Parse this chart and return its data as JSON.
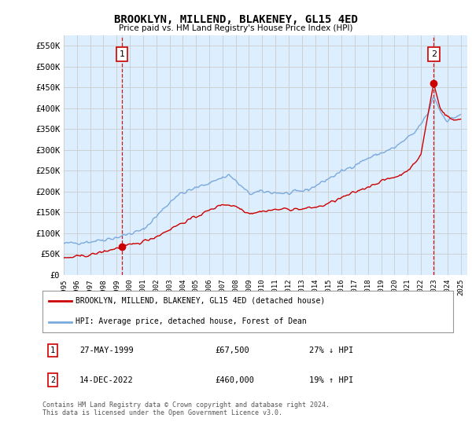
{
  "title": "BROOKLYN, MILLEND, BLAKENEY, GL15 4ED",
  "subtitle": "Price paid vs. HM Land Registry's House Price Index (HPI)",
  "ylabel_ticks": [
    "£0",
    "£50K",
    "£100K",
    "£150K",
    "£200K",
    "£250K",
    "£300K",
    "£350K",
    "£400K",
    "£450K",
    "£500K",
    "£550K"
  ],
  "ytick_values": [
    0,
    50000,
    100000,
    150000,
    200000,
    250000,
    300000,
    350000,
    400000,
    450000,
    500000,
    550000
  ],
  "ylim": [
    0,
    575000
  ],
  "xlim_start": 1995.0,
  "xlim_end": 2025.5,
  "point1_x": 1999.4,
  "point1_y": 67500,
  "point2_x": 2022.96,
  "point2_y": 460000,
  "legend_line1": "BROOKLYN, MILLEND, BLAKENEY, GL15 4ED (detached house)",
  "legend_line2": "HPI: Average price, detached house, Forest of Dean",
  "table_row1_num": "1",
  "table_row1_date": "27-MAY-1999",
  "table_row1_price": "£67,500",
  "table_row1_hpi": "27% ↓ HPI",
  "table_row2_num": "2",
  "table_row2_date": "14-DEC-2022",
  "table_row2_price": "£460,000",
  "table_row2_hpi": "19% ↑ HPI",
  "footer": "Contains HM Land Registry data © Crown copyright and database right 2024.\nThis data is licensed under the Open Government Licence v3.0.",
  "color_red": "#cc0000",
  "color_blue": "#7aaadd",
  "color_grid": "#cccccc",
  "color_bg_plot": "#ddeeff",
  "color_bg_fig": "#ffffff",
  "vline_color": "#cc0000"
}
